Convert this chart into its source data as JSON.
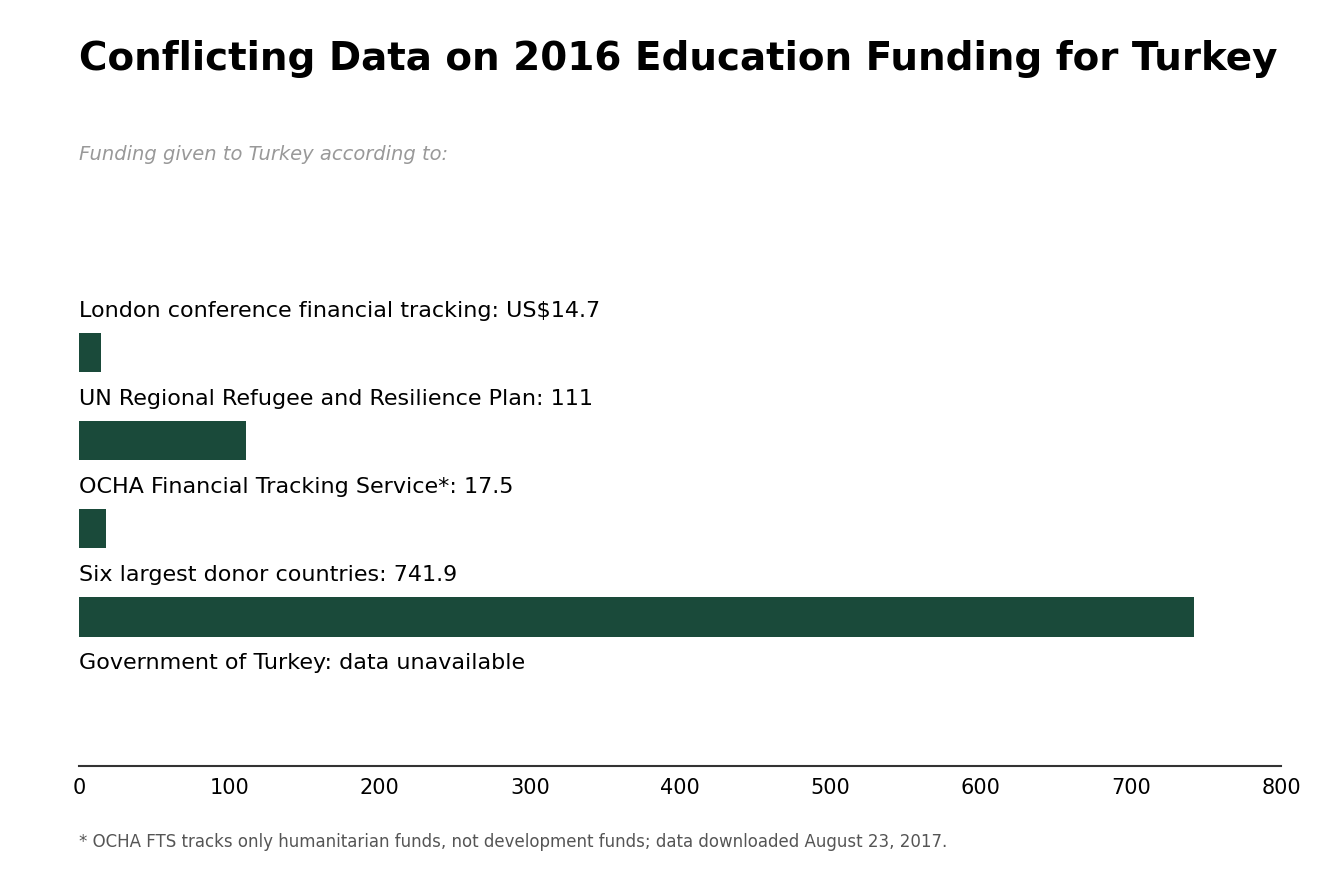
{
  "title": "Conflicting Data on 2016 Education Funding for Turkey",
  "subtitle": "Funding given to Turkey according to:",
  "categories": [
    "London conference financial tracking: US$14.7",
    "UN Regional Refugee and Resilience Plan: 111",
    "OCHA Financial Tracking Service*: 17.5",
    "Six largest donor countries: 741.9",
    "Government of Turkey: data unavailable"
  ],
  "values": [
    14.7,
    111,
    17.5,
    741.9,
    null
  ],
  "bar_color": "#1a4a3a",
  "bar_height": 0.028,
  "xlim": [
    0,
    800
  ],
  "xticks": [
    0,
    100,
    200,
    300,
    400,
    500,
    600,
    700,
    800
  ],
  "footnote": "* OCHA FTS tracks only humanitarian funds, not development funds; data downloaded August 23, 2017.",
  "background_color": "#ffffff",
  "title_fontsize": 28,
  "subtitle_fontsize": 14,
  "label_fontsize": 16,
  "tick_fontsize": 15,
  "footnote_fontsize": 12,
  "subtitle_color": "#999999",
  "footnote_color": "#555555"
}
